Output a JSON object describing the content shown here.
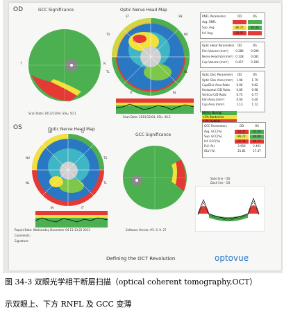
{
  "report": {
    "od": {
      "eye_label": "OD",
      "gcc_title": "GCC Significance",
      "onh_title": "Optic Nerve Head Map",
      "scan_left": "Scan Date: 2013/12/04, SSI= 50.1",
      "scan_right": "Scan Date: 2013/12/04, SSI= 46.3",
      "quadrants": {
        "t": "T",
        "n": "N",
        "s": "S",
        "i": "I",
        "st": "ST",
        "sn": "SN",
        "nu": "NU",
        "nl": "NL",
        "in": "IN",
        "it": "IT",
        "tl": "TL",
        "tu": "TU"
      },
      "rnfl_table": {
        "title": "RNFL Parameters",
        "col_od": "OD",
        "col_os": "OS",
        "rows": [
          {
            "label": "Avg. RNFL",
            "od": "",
            "os": ""
          },
          {
            "label": "Sup. Avg.",
            "od": "86.72",
            "os": "84.86"
          },
          {
            "label": "Inf. Avg.",
            "od": "83.97",
            "os": ""
          }
        ]
      },
      "onh_table": {
        "title": "Optic Head Parameters",
        "col_od": "OD",
        "col_os": "OS",
        "rows": [
          {
            "label": "Rim Volume (mm³)",
            "od": "0.289",
            "os": "0.096"
          },
          {
            "label": "Nerve Head Vol (mm³)",
            "od": "0.128",
            "os": "0.081"
          },
          {
            "label": "Cup Volume (mm³)",
            "od": "0.417",
            "os": "0.390"
          }
        ]
      },
      "disc_table": {
        "title": "Optic Disc Parameters",
        "col_od": "OD",
        "col_os": "OS",
        "rows": [
          {
            "label": "Optic Disk Area (mm²)",
            "od": "1.98",
            "os": "1.79"
          },
          {
            "label": "Cup/Disc Area Ratio",
            "od": "0.96",
            "os": "0.82"
          },
          {
            "label": "Horizontal C/D Ratio",
            "od": "0.80",
            "os": "0.98"
          },
          {
            "label": "Vertical C/D Ratio",
            "od": "0.75",
            "os": "0.77"
          },
          {
            "label": "Rim Area (mm²)",
            "od": "0.00",
            "os": "0.40"
          },
          {
            "label": "Cup Area (mm²)",
            "od": "1.13",
            "os": "1.12"
          }
        ]
      },
      "legend": [
        {
          "label": "Within Normal",
          "color": "#4caf50"
        },
        {
          "label": "<5% Borderline",
          "color": "#f2e13b"
        },
        {
          "label": "<1% Outside",
          "color": "#e53935"
        }
      ]
    },
    "os": {
      "eye_label": "OS",
      "onh_title": "Optic Nerve Head Map",
      "gcc_title": "GCC Significance",
      "quadrants": {
        "t": "T",
        "n": "N",
        "s": "S",
        "i": "I",
        "st": "ST",
        "sn": "SN",
        "nu": "NU",
        "nl": "NL",
        "in": "IN",
        "it": "IT",
        "tl": "TL",
        "tu": "TU"
      },
      "gcc_table": {
        "title": "GCC Parameters",
        "col_od": "OD",
        "col_os": "OS",
        "rows": [
          {
            "label": "Avg. GCC(%)",
            "od": "83.47",
            "os": "83.69"
          },
          {
            "label": "Sup. GCC(%)",
            "od": "86.72",
            "os": "84.86"
          },
          {
            "label": "Inf. GCC(%)",
            "od": "82.34",
            "os": "80.15"
          },
          {
            "label": "FLV (%)",
            "od": "3.956",
            "os": "2.491"
          },
          {
            "label": "GLV (%)",
            "od": "21.81",
            "os": "17.47"
          }
        ]
      },
      "profile_legend": {
        "solid": "Solid line - OD",
        "dash": "Dash line - OS"
      },
      "disc_center": "Fovea"
    },
    "footer": {
      "report_date": "Report Date: Wednesday December 04 11:13:22 2013",
      "comments": "Comments:",
      "signature": "Signature:",
      "software": "Software Version #5. 0. 0. 27",
      "tagline": "Defining the OCT Revolution",
      "logo": "optovue"
    },
    "colors": {
      "normal": "#4caf50",
      "borderline": "#f2e13b",
      "outside": "#e53935",
      "thick": "#1565c0",
      "accent_blue": "#2a78c4"
    }
  },
  "caption": {
    "title": "图 34-3 双眼光学相干断层扫描（optical coherent tomography,OCT）",
    "subtitle": "示双眼上、下方 RNFL 及 GCC 变薄"
  }
}
